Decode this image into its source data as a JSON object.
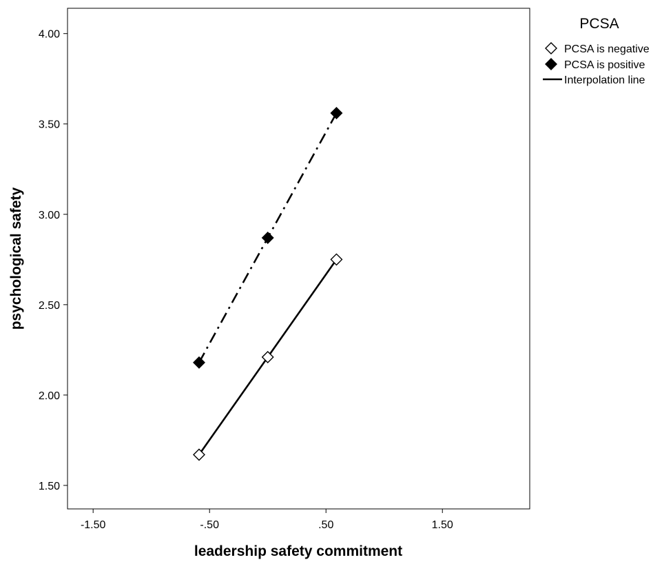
{
  "chart_data": {
    "type": "line",
    "title": "",
    "xlabel": "leadership safety commitment",
    "ylabel": "psychological safety",
    "xlim": [
      -1.72,
      2.25
    ],
    "ylim": [
      1.37,
      4.14
    ],
    "x_ticks": [
      -1.5,
      -0.5,
      0.5,
      1.5
    ],
    "x_tick_labels": [
      "-1.50",
      "-.50",
      ".50",
      "1.50"
    ],
    "y_ticks": [
      1.5,
      2.0,
      2.5,
      3.0,
      3.5,
      4.0
    ],
    "y_tick_labels": [
      "1.50",
      "2.00",
      "2.50",
      "3.00",
      "3.50",
      "4.00"
    ],
    "grid": false,
    "legend_title": "PCSA",
    "legend_position": "right",
    "legend_entries": [
      {
        "label": "PCSA is negative",
        "marker": "diamond-open"
      },
      {
        "label": "PCSA is positive",
        "marker": "diamond-filled"
      },
      {
        "label": "Interpolation line",
        "marker": "line"
      }
    ],
    "series": [
      {
        "name": "PCSA is negative",
        "marker": "diamond-open",
        "line_style": "solid",
        "x": [
          -0.59,
          0.0,
          0.59
        ],
        "y": [
          1.67,
          2.21,
          2.75
        ]
      },
      {
        "name": "PCSA is positive",
        "marker": "diamond-filled",
        "line_style": "dashdot",
        "x": [
          -0.59,
          0.0,
          0.59
        ],
        "y": [
          2.18,
          2.87,
          3.56
        ]
      }
    ],
    "colors": {
      "line": "#000000",
      "fill": "#000000",
      "background": "#ffffff"
    }
  }
}
